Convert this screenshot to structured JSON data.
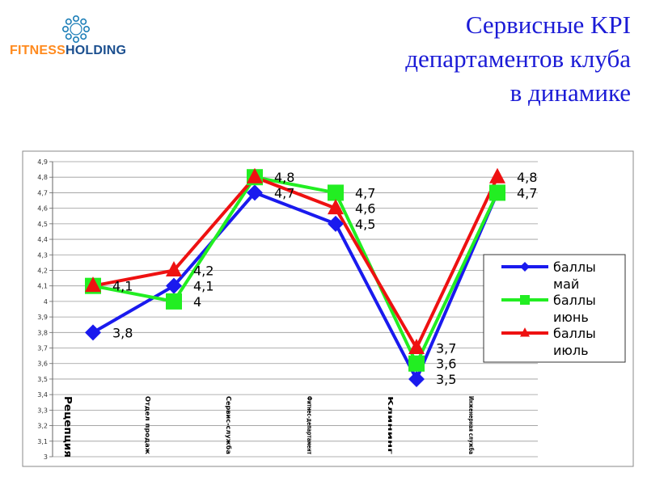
{
  "logo": {
    "part1": "FITNESS",
    "part2": "HOLDING",
    "part1_color": "#ff8a1e",
    "part2_color": "#1b4f8f",
    "emblem_color": "#1e7fb8"
  },
  "title": {
    "line1": "Сервисные KPI",
    "line2": "департаментов клуба",
    "line3": "в динамике",
    "color": "#1b1bd6"
  },
  "chart_data": {
    "type": "line",
    "categories": [
      "Рецепция",
      "Отдел продаж",
      "Сервис-служба",
      "Фитнес-департамент",
      "Клининг",
      "Инженерная служба"
    ],
    "ylim": [
      3,
      4.9
    ],
    "yticks": [
      "3",
      "3,1",
      "3,2",
      "3,3",
      "3,4",
      "3,5",
      "3,6",
      "3,7",
      "3,8",
      "3,9",
      "4",
      "4,1",
      "4,2",
      "4,3",
      "4,4",
      "4,5",
      "4,6",
      "4,7",
      "4,8",
      "4,9"
    ],
    "grid": true,
    "legend_position": "right",
    "series": [
      {
        "name_line1": "баллы",
        "name_line2": "май",
        "values": [
          3.8,
          4.1,
          4.7,
          4.5,
          3.5,
          4.7
        ],
        "labels": [
          "3,8",
          "4,1",
          "4,7",
          "4,5",
          "3,5",
          "4,7"
        ],
        "color": "#1a1aee",
        "marker": "diamond"
      },
      {
        "name_line1": "баллы",
        "name_line2": "июнь",
        "values": [
          4.1,
          4.0,
          4.8,
          4.7,
          3.6,
          4.7
        ],
        "labels": [
          "",
          "4",
          "",
          "4,7",
          "3,6",
          ""
        ],
        "color": "#22ee22",
        "marker": "square"
      },
      {
        "name_line1": "баллы",
        "name_line2": "июль",
        "values": [
          4.1,
          4.2,
          4.8,
          4.6,
          3.7,
          4.8
        ],
        "labels": [
          "4,1",
          "4,2",
          "4,8",
          "4,6",
          "3,7",
          "4,8"
        ],
        "color": "#ee1111",
        "marker": "triangle"
      }
    ]
  }
}
